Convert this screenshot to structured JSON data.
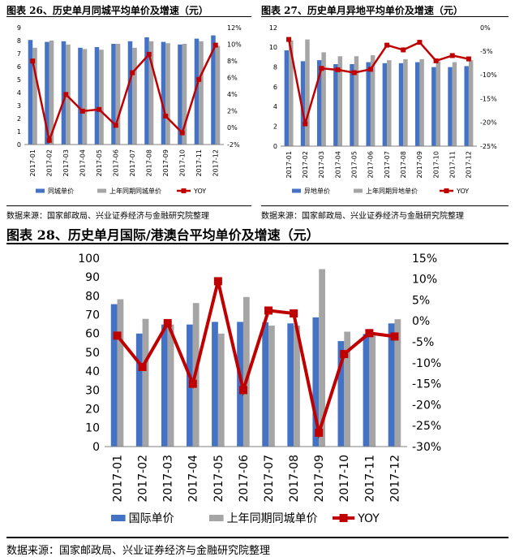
{
  "fig26": {
    "title": "图表 26、历史单月同城平均单价及增速（元）",
    "source": "数据来源：国家邮政局、兴业证券经济与金融研究院整理",
    "chart_data": {
      "type": "bar",
      "categories": [
        "2017-01",
        "2017-02",
        "2017-03",
        "2017-04",
        "2017-05",
        "2017-06",
        "2017-07",
        "2017-08",
        "2017-09",
        "2017-10",
        "2017-11",
        "2017-12"
      ],
      "series": [
        {
          "name": "同城单价",
          "kind": "bar",
          "axis": "left",
          "values": [
            8.05,
            7.9,
            7.95,
            7.45,
            7.5,
            7.75,
            7.95,
            8.25,
            7.9,
            7.7,
            8.15,
            8.4
          ]
        },
        {
          "name": "上年同期同城单价",
          "kind": "bar",
          "axis": "left",
          "values": [
            7.45,
            8.0,
            7.7,
            7.35,
            7.3,
            7.75,
            7.45,
            7.95,
            7.8,
            7.75,
            7.95,
            7.6
          ]
        },
        {
          "name": "YOY",
          "kind": "line",
          "axis": "right",
          "values": [
            8.0,
            -1.5,
            4.0,
            2.0,
            2.2,
            0.3,
            6.6,
            8.8,
            1.4,
            -0.6,
            5.8,
            9.9
          ]
        }
      ],
      "ylim_left": [
        0,
        9
      ],
      "yticks_left": [
        "0",
        "1",
        "2",
        "3",
        "4",
        "5",
        "6",
        "7",
        "8",
        "9"
      ],
      "ylim_right": [
        -2,
        12
      ],
      "yticks_right": [
        "-2%",
        "0%",
        "2%",
        "4%",
        "6%",
        "8%",
        "10%",
        "12%"
      ],
      "grid": false,
      "legend": "bottom"
    }
  },
  "fig27": {
    "title": "图表 27、历史单月异地平均单价及增速（元）",
    "source": "数据来源：国家邮政局、兴业证券经济与金融研究院整理",
    "chart_data": {
      "type": "bar",
      "categories": [
        "2017-01",
        "2017-02",
        "2017-03",
        "2017-04",
        "2017-05",
        "2017-06",
        "2017-07",
        "2017-08",
        "2017-09",
        "2017-10",
        "2017-11",
        "2017-12"
      ],
      "series": [
        {
          "name": "异地单价",
          "kind": "bar",
          "axis": "left",
          "values": [
            9.7,
            8.6,
            8.7,
            8.3,
            8.3,
            8.5,
            8.4,
            8.4,
            8.5,
            8.0,
            8.0,
            8.1
          ]
        },
        {
          "name": "上年同期异地单价",
          "kind": "bar",
          "axis": "left",
          "values": [
            10.7,
            10.8,
            9.5,
            9.1,
            9.1,
            9.2,
            8.7,
            8.8,
            8.8,
            8.6,
            8.5,
            8.7
          ]
        },
        {
          "name": "YOY",
          "kind": "line",
          "axis": "right",
          "values": [
            -2.5,
            -20.3,
            -8.6,
            -8.9,
            -9.5,
            -8.8,
            -3.7,
            -4.7,
            -3.1,
            -7.0,
            -5.9,
            -6.6
          ]
        }
      ],
      "ylim_left": [
        0,
        12
      ],
      "yticks_left": [
        "0",
        "2",
        "4",
        "6",
        "8",
        "10",
        "12"
      ],
      "ylim_right": [
        -25,
        0
      ],
      "yticks_right": [
        "-25%",
        "-20%",
        "-15%",
        "-10%",
        "-5%",
        "0%"
      ],
      "grid": false,
      "legend": "bottom"
    }
  },
  "fig28": {
    "title": "图表 28、历史单月国际/港澳台平均单价及增速（元）",
    "source": "数据来源：国家邮政局、兴业证券经济与金融研究院整理",
    "chart_data": {
      "type": "bar",
      "categories": [
        "2017-01",
        "2017-02",
        "2017-03",
        "2017-04",
        "2017-05",
        "2017-06",
        "2017-07",
        "2017-08",
        "2017-09",
        "2017-10",
        "2017-11",
        "2017-12"
      ],
      "series": [
        {
          "name": "国际单价",
          "kind": "bar",
          "axis": "left",
          "values": [
            75.6,
            60.0,
            64.8,
            64.8,
            66.2,
            66.2,
            66.0,
            65.4,
            68.6,
            56.0,
            59.8,
            65.4
          ]
        },
        {
          "name": "上年同期同城单价",
          "kind": "bar",
          "axis": "left",
          "values": [
            78.2,
            67.8,
            64.8,
            76.2,
            60.0,
            79.4,
            64.2,
            64.2,
            94.2,
            61.0,
            60.6,
            67.6
          ]
        },
        {
          "name": "YOY",
          "kind": "line",
          "axis": "right",
          "values": [
            -3.5,
            -11.0,
            -0.5,
            -15.0,
            9.5,
            -16.5,
            2.5,
            1.8,
            -26.7,
            -7.9,
            -2.9,
            -3.7
          ]
        }
      ],
      "ylim_left": [
        0,
        100
      ],
      "yticks_left": [
        "0",
        "10",
        "20",
        "30",
        "40",
        "50",
        "60",
        "70",
        "80",
        "90",
        "100"
      ],
      "ylim_right": [
        -30,
        15
      ],
      "yticks_right": [
        "-30%",
        "-25%",
        "-20%",
        "-15%",
        "-10%",
        "-5%",
        "0%",
        "5%",
        "10%",
        "15%"
      ],
      "grid": false,
      "legend": "bottom"
    }
  },
  "colors": {
    "bar1": "#4472C4",
    "bar2": "#A5A5A5",
    "line": "#C00000"
  }
}
